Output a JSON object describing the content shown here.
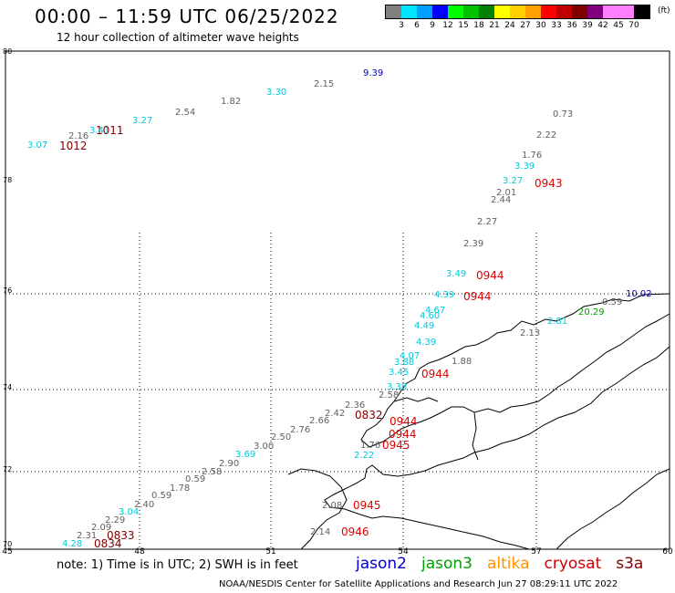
{
  "title": "00:00 – 11:59 UTC 06/25/2022",
  "subtitle": "12 hour collection of altimeter wave heights",
  "legend": {
    "colors": [
      "#808080",
      "#00e5ff",
      "#00a0ff",
      "#0000ff",
      "#00ff00",
      "#00c000",
      "#008000",
      "#ffff00",
      "#ffd000",
      "#ffa000",
      "#ff0000",
      "#c00000",
      "#800000",
      "#800080",
      "#ff80ff",
      "#ff80ff",
      "#000000"
    ],
    "values": [
      "3",
      "6",
      "9",
      "12",
      "15",
      "18",
      "21",
      "24",
      "27",
      "30",
      "33",
      "36",
      "39",
      "42",
      "45",
      "70"
    ],
    "unit": "(ft)"
  },
  "axes": {
    "y": [
      "80",
      "78",
      "76",
      "74",
      "72",
      "70"
    ],
    "x": [
      "45",
      "48",
      "51",
      "54",
      "57",
      "60"
    ]
  },
  "labels": [
    {
      "t": "9.39",
      "c": "#0000c0"
    },
    {
      "t": "2.15",
      "c": "#606060"
    },
    {
      "t": "3.30",
      "c": "#00c8d8"
    },
    {
      "t": "1.82",
      "c": "#606060"
    },
    {
      "t": "2.54",
      "c": "#606060"
    },
    {
      "t": "3.27",
      "c": "#00c8d8"
    },
    {
      "t": "1011",
      "c": "#800000"
    },
    {
      "t": "3.41",
      "c": "#00c8d8"
    },
    {
      "t": "2.16",
      "c": "#606060"
    },
    {
      "t": "1012",
      "c": "#800000"
    },
    {
      "t": "3.07",
      "c": "#00c8d8"
    },
    {
      "t": "0.73",
      "c": "#606060"
    },
    {
      "t": "2.22",
      "c": "#606060"
    },
    {
      "t": "1.76",
      "c": "#606060"
    },
    {
      "t": "3.39",
      "c": "#00c8d8"
    },
    {
      "t": "3.27",
      "c": "#00c8d8"
    },
    {
      "t": "0943",
      "c": "#e00000"
    },
    {
      "t": "2.01",
      "c": "#606060"
    },
    {
      "t": "2.44",
      "c": "#606060"
    },
    {
      "t": "2.27",
      "c": "#606060"
    },
    {
      "t": "2.39",
      "c": "#606060"
    },
    {
      "t": "3.49",
      "c": "#00c8d8"
    },
    {
      "t": "0944",
      "c": "#e00000"
    },
    {
      "t": "4.39",
      "c": "#00c8d8"
    },
    {
      "t": "0944",
      "c": "#e00000"
    },
    {
      "t": "4.67",
      "c": "#00c8d8"
    },
    {
      "t": "4.60",
      "c": "#00c8d8"
    },
    {
      "t": "4.49",
      "c": "#00c8d8"
    },
    {
      "t": "4.39",
      "c": "#00c8d8"
    },
    {
      "t": "4.07",
      "c": "#00c8d8"
    },
    {
      "t": "3.88",
      "c": "#00c8d8"
    },
    {
      "t": "3.45",
      "c": "#00c8d8"
    },
    {
      "t": "0944",
      "c": "#e00000"
    },
    {
      "t": "1.88",
      "c": "#606060"
    },
    {
      "t": "3.38",
      "c": "#00c8d8"
    },
    {
      "t": "2.58",
      "c": "#606060"
    },
    {
      "t": "2.36",
      "c": "#606060"
    },
    {
      "t": "0832",
      "c": "#800000"
    },
    {
      "t": "2.42",
      "c": "#606060"
    },
    {
      "t": "0944",
      "c": "#e00000"
    },
    {
      "t": "2.66",
      "c": "#606060"
    },
    {
      "t": "0944",
      "c": "#e00000"
    },
    {
      "t": "2.76",
      "c": "#606060"
    },
    {
      "t": "2.50",
      "c": "#606060"
    },
    {
      "t": "0945",
      "c": "#e00000"
    },
    {
      "t": "1.76",
      "c": "#606060"
    },
    {
      "t": "3.00",
      "c": "#606060"
    },
    {
      "t": "3.69",
      "c": "#00c8d8"
    },
    {
      "t": "2.22",
      "c": "#00c8d8"
    },
    {
      "t": "2.90",
      "c": "#606060"
    },
    {
      "t": "2.58",
      "c": "#606060"
    },
    {
      "t": "0.59",
      "c": "#606060"
    },
    {
      "t": "1.78",
      "c": "#606060"
    },
    {
      "t": "0.59",
      "c": "#606060"
    },
    {
      "t": "2.40",
      "c": "#606060"
    },
    {
      "t": "3.04",
      "c": "#00c8d8"
    },
    {
      "t": "2.29",
      "c": "#606060"
    },
    {
      "t": "2.09",
      "c": "#606060"
    },
    {
      "t": "0833",
      "c": "#800000"
    },
    {
      "t": "2.31",
      "c": "#606060"
    },
    {
      "t": "0834",
      "c": "#800000"
    },
    {
      "t": "4.28",
      "c": "#00c8d8"
    },
    {
      "t": "2.08",
      "c": "#606060"
    },
    {
      "t": "0945",
      "c": "#e00000"
    },
    {
      "t": "2.14",
      "c": "#606060"
    },
    {
      "t": "0946",
      "c": "#e00000"
    },
    {
      "t": "10.02",
      "c": "#0000c0"
    },
    {
      "t": "0.59",
      "c": "#606060"
    },
    {
      "t": "20.29",
      "c": "#00a000"
    },
    {
      "t": "2.81",
      "c": "#00c8d8"
    },
    {
      "t": "2.13",
      "c": "#606060"
    }
  ],
  "note": "note:  1) Time is in UTC;  2) SWH is in feet",
  "satellites": [
    {
      "name": "jason2",
      "color": "#0000d0"
    },
    {
      "name": "jason3",
      "color": "#00a000"
    },
    {
      "name": "altika",
      "color": "#ff9000"
    },
    {
      "name": "cryosat",
      "color": "#d00000"
    },
    {
      "name": "s3a",
      "color": "#800000"
    }
  ],
  "credit": "NOAA/NESDIS Center for Satellite Applications and Research    Jun 27 08:29:11 UTC 2022"
}
